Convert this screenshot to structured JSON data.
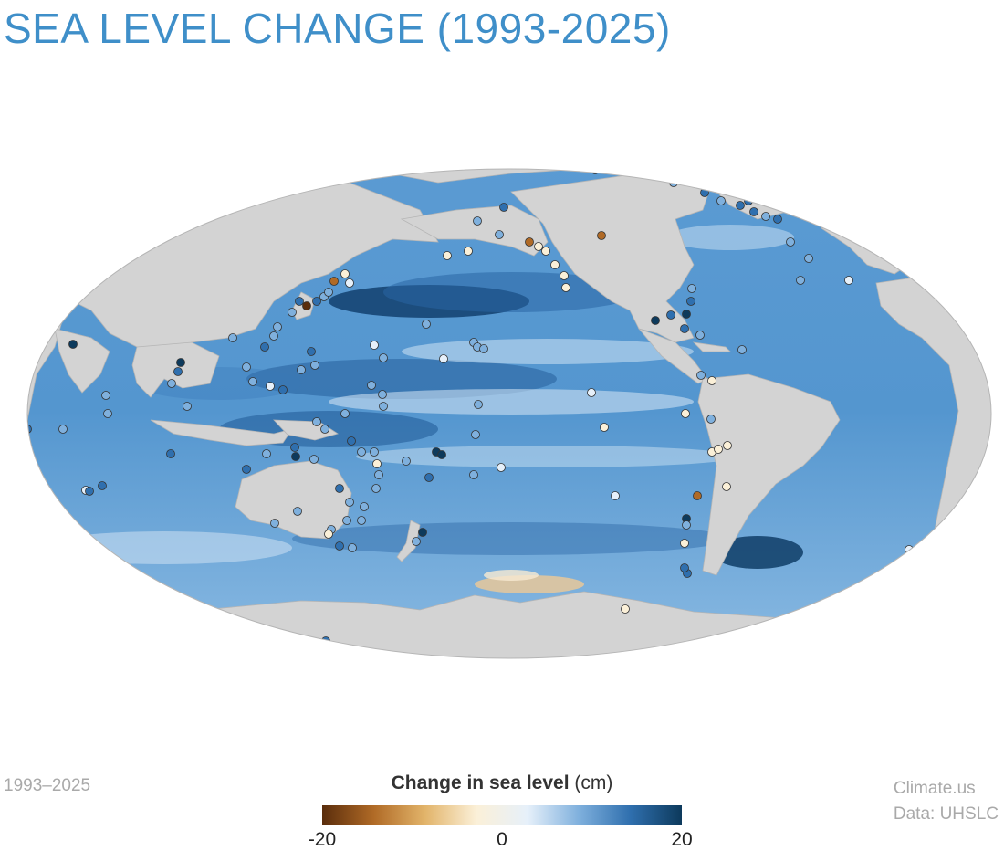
{
  "title": "SEA LEVEL CHANGE (1993-2025)",
  "period_label": "1993–2025",
  "source": {
    "line1": "Climate.us",
    "line2": "Data: UHSLC"
  },
  "legend": {
    "title_bold": "Change in sea level",
    "title_unit": "(cm)",
    "min_label": "-20",
    "mid_label": "0",
    "max_label": "20",
    "min": -20,
    "max": 20,
    "colors": [
      "#5a2d0c",
      "#b06a26",
      "#e2b46a",
      "#fbf0d8",
      "#e6f0fa",
      "#7fb0dd",
      "#2f6fae",
      "#0d3a5c"
    ]
  },
  "map": {
    "projection": "Mollweide (Pacific-centered)",
    "land_color": "#d3d3d3",
    "ocean_base_color": "#4f8fc9"
  }
}
